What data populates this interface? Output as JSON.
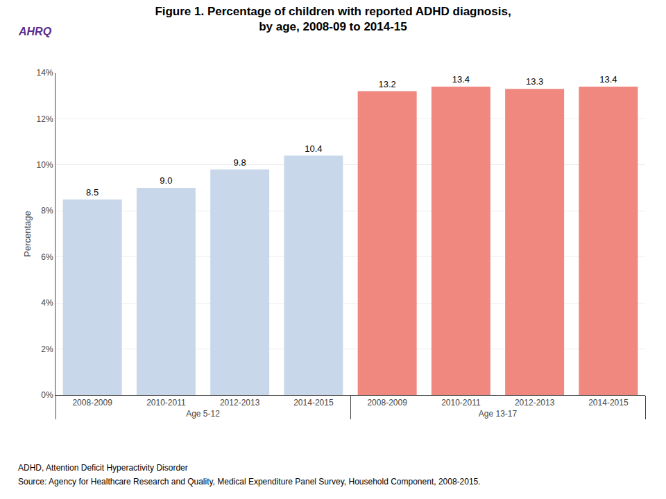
{
  "chart_data": {
    "type": "bar",
    "title": "Figure 1. Percentage of children with reported ADHD diagnosis,\nby age, 2008-09 to 2014-15",
    "logo_text": "AHRQ",
    "ylabel": "Percentage",
    "categories": [
      "2008-2009",
      "2010-2011",
      "2012-2013",
      "2014-2015"
    ],
    "series": [
      {
        "name": "Age 5-12",
        "color": "#c8d8ea",
        "values": [
          8.5,
          9.0,
          9.8,
          10.4
        ],
        "value_labels": [
          "8.5",
          "9.0",
          "9.8",
          "10.4"
        ]
      },
      {
        "name": "Age 13-17",
        "color": "#f08880",
        "values": [
          13.2,
          13.4,
          13.3,
          13.4
        ],
        "value_labels": [
          "13.2",
          "13.4",
          "13.3",
          "13.4"
        ]
      }
    ],
    "ylim": [
      0,
      14
    ],
    "yticks": [
      {
        "value": 0,
        "label": "0%"
      },
      {
        "value": 2,
        "label": "2%"
      },
      {
        "value": 4,
        "label": "4%"
      },
      {
        "value": 6,
        "label": "6%"
      },
      {
        "value": 8,
        "label": "8%"
      },
      {
        "value": 10,
        "label": "10%"
      },
      {
        "value": 12,
        "label": "12%"
      },
      {
        "value": 14,
        "label": "14%"
      }
    ],
    "grid": true,
    "data_labels": true,
    "footnotes": [
      "ADHD, Attention Deficit Hyperactivity Disorder",
      "Source: Agency for Healthcare Research and Quality, Medical Expenditure Panel Survey, Household Component, 2008-2015."
    ]
  }
}
